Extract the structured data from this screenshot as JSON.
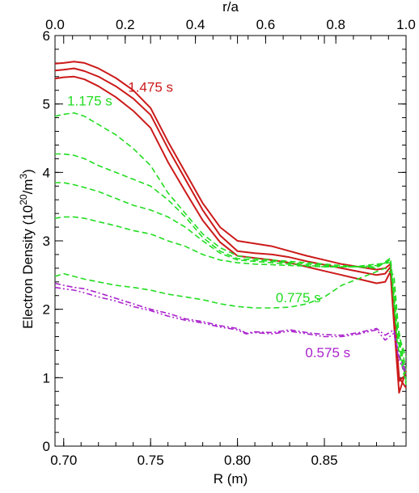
{
  "chart_data": {
    "type": "line",
    "xlabel": "R (m)",
    "x2label": "r/a",
    "ylabel_main": "Electron Density (10",
    "ylabel_sup1": "20",
    "ylabel_mid": "/m",
    "ylabel_sup2": "3",
    "ylabel_end": ")",
    "xlim": [
      0.695,
      0.897
    ],
    "ylim": [
      0,
      6
    ],
    "x2lim": [
      0,
      1
    ],
    "xticks": [
      0.7,
      0.75,
      0.8,
      0.85
    ],
    "xtick_labels": [
      "0.70",
      "0.75",
      "0.80",
      "0.85"
    ],
    "x2ticks": [
      0,
      0.2,
      0.4,
      0.6,
      0.8,
      1.0
    ],
    "x2tick_labels": [
      "0.0",
      "0.2",
      "0.4",
      "0.6",
      "0.8",
      "1.0"
    ],
    "yticks": [
      0,
      1,
      2,
      3,
      4,
      5,
      6
    ],
    "ytick_labels": [
      "0",
      "1",
      "2",
      "3",
      "4",
      "5",
      "6"
    ],
    "colors": {
      "red": "#cc1a1a",
      "green": "#22dd22",
      "purple": "#aa22cc"
    },
    "annotations": [
      {
        "text": "1.475 s",
        "color": "#cc1a1a",
        "x": 0.737,
        "y": 5.18
      },
      {
        "text": "1.175 s",
        "color": "#22dd22",
        "x": 0.702,
        "y": 4.98
      },
      {
        "text": "0.775 s",
        "color": "#22dd22",
        "x": 0.822,
        "y": 2.1
      },
      {
        "text": "0.575 s",
        "color": "#aa22cc",
        "x": 0.839,
        "y": 1.3
      }
    ],
    "series": [
      {
        "group": "1.475 s",
        "color": "#cc1a1a",
        "style": "solid",
        "x": [
          0.695,
          0.7,
          0.706,
          0.712,
          0.72,
          0.73,
          0.74,
          0.75,
          0.76,
          0.77,
          0.78,
          0.79,
          0.8,
          0.81,
          0.82,
          0.83,
          0.84,
          0.85,
          0.86,
          0.87,
          0.88,
          0.885,
          0.888,
          0.89,
          0.893,
          0.897
        ],
        "y": [
          5.59,
          5.6,
          5.62,
          5.6,
          5.52,
          5.38,
          5.2,
          4.94,
          4.45,
          4.0,
          3.55,
          3.2,
          3.0,
          2.96,
          2.92,
          2.85,
          2.78,
          2.72,
          2.66,
          2.62,
          2.58,
          2.6,
          2.66,
          2.0,
          1.0,
          0.85
        ]
      },
      {
        "group": "1.475 s",
        "color": "#cc1a1a",
        "style": "solid",
        "x": [
          0.695,
          0.7,
          0.706,
          0.712,
          0.72,
          0.73,
          0.74,
          0.75,
          0.76,
          0.77,
          0.78,
          0.79,
          0.8,
          0.81,
          0.82,
          0.83,
          0.84,
          0.85,
          0.86,
          0.87,
          0.88,
          0.885,
          0.888,
          0.89,
          0.893,
          0.897
        ],
        "y": [
          5.49,
          5.5,
          5.52,
          5.48,
          5.4,
          5.26,
          5.08,
          4.84,
          4.35,
          3.9,
          3.45,
          3.08,
          2.85,
          2.82,
          2.8,
          2.76,
          2.7,
          2.65,
          2.6,
          2.55,
          2.5,
          2.52,
          2.62,
          1.9,
          0.95,
          1.05
        ]
      },
      {
        "group": "1.475 s",
        "color": "#cc1a1a",
        "style": "solid",
        "x": [
          0.695,
          0.7,
          0.706,
          0.712,
          0.72,
          0.73,
          0.74,
          0.75,
          0.76,
          0.77,
          0.78,
          0.79,
          0.8,
          0.81,
          0.82,
          0.83,
          0.84,
          0.85,
          0.86,
          0.87,
          0.88,
          0.885,
          0.888,
          0.89,
          0.893,
          0.897
        ],
        "y": [
          5.37,
          5.39,
          5.4,
          5.36,
          5.26,
          5.1,
          4.9,
          4.65,
          4.15,
          3.72,
          3.3,
          2.98,
          2.78,
          2.75,
          2.72,
          2.68,
          2.62,
          2.56,
          2.5,
          2.44,
          2.38,
          2.4,
          2.55,
          1.8,
          0.78,
          1.1
        ]
      },
      {
        "group": "1.175 s",
        "color": "#22dd22",
        "style": "dashed",
        "x": [
          0.695,
          0.7,
          0.706,
          0.712,
          0.72,
          0.73,
          0.74,
          0.75,
          0.76,
          0.77,
          0.78,
          0.79,
          0.8,
          0.81,
          0.82,
          0.83,
          0.84,
          0.85,
          0.86,
          0.87,
          0.88,
          0.888,
          0.892,
          0.897
        ],
        "y": [
          4.82,
          4.85,
          4.87,
          4.82,
          4.7,
          4.55,
          4.35,
          4.1,
          3.7,
          3.4,
          3.1,
          2.9,
          2.78,
          2.74,
          2.72,
          2.7,
          2.68,
          2.66,
          2.64,
          2.62,
          2.6,
          2.75,
          1.8,
          1.1
        ]
      },
      {
        "group": "1.175 s",
        "color": "#22dd22",
        "style": "dashed",
        "x": [
          0.695,
          0.7,
          0.706,
          0.712,
          0.72,
          0.73,
          0.74,
          0.75,
          0.76,
          0.77,
          0.78,
          0.79,
          0.8,
          0.81,
          0.82,
          0.83,
          0.84,
          0.85,
          0.86,
          0.87,
          0.88,
          0.888,
          0.892,
          0.897
        ],
        "y": [
          4.27,
          4.27,
          4.25,
          4.2,
          4.1,
          4.0,
          3.9,
          3.8,
          3.6,
          3.35,
          3.05,
          2.85,
          2.74,
          2.72,
          2.7,
          2.68,
          2.66,
          2.64,
          2.62,
          2.62,
          2.62,
          2.72,
          1.7,
          1.0
        ]
      },
      {
        "group": "1.175 s",
        "color": "#22dd22",
        "style": "dashed",
        "x": [
          0.695,
          0.7,
          0.706,
          0.712,
          0.72,
          0.73,
          0.74,
          0.75,
          0.76,
          0.77,
          0.78,
          0.79,
          0.8,
          0.81,
          0.82,
          0.83,
          0.84,
          0.85,
          0.86,
          0.87,
          0.88,
          0.888,
          0.892,
          0.897
        ],
        "y": [
          3.85,
          3.85,
          3.82,
          3.78,
          3.72,
          3.62,
          3.52,
          3.45,
          3.35,
          3.2,
          3.0,
          2.82,
          2.72,
          2.7,
          2.68,
          2.66,
          2.64,
          2.62,
          2.62,
          2.62,
          2.64,
          2.7,
          1.6,
          0.95
        ]
      },
      {
        "group": "1.175 s",
        "color": "#22dd22",
        "style": "dashed",
        "x": [
          0.695,
          0.7,
          0.706,
          0.712,
          0.72,
          0.73,
          0.74,
          0.75,
          0.76,
          0.77,
          0.78,
          0.79,
          0.8,
          0.81,
          0.82,
          0.83,
          0.84,
          0.85,
          0.86,
          0.87,
          0.88,
          0.888,
          0.892,
          0.897
        ],
        "y": [
          3.33,
          3.35,
          3.35,
          3.33,
          3.28,
          3.22,
          3.15,
          3.1,
          3.0,
          2.92,
          2.8,
          2.72,
          2.68,
          2.66,
          2.65,
          2.64,
          2.63,
          2.62,
          2.62,
          2.63,
          2.66,
          2.68,
          1.5,
          0.9
        ]
      },
      {
        "group": "0.775 s",
        "color": "#22dd22",
        "style": "dashed",
        "x": [
          0.695,
          0.7,
          0.706,
          0.712,
          0.72,
          0.73,
          0.74,
          0.75,
          0.76,
          0.77,
          0.78,
          0.79,
          0.8,
          0.81,
          0.82,
          0.83,
          0.84,
          0.85,
          0.86,
          0.87,
          0.88,
          0.885,
          0.89,
          0.893,
          0.897
        ],
        "y": [
          2.48,
          2.52,
          2.48,
          2.44,
          2.4,
          2.35,
          2.32,
          2.28,
          2.22,
          2.18,
          2.14,
          2.08,
          2.04,
          2.02,
          2.02,
          2.03,
          2.08,
          2.18,
          2.35,
          2.45,
          2.55,
          2.6,
          2.5,
          1.6,
          1.3
        ]
      },
      {
        "group": "0.575 s",
        "color": "#aa22cc",
        "style": "dashdot",
        "x": [
          0.695,
          0.7,
          0.706,
          0.712,
          0.72,
          0.73,
          0.74,
          0.75,
          0.76,
          0.77,
          0.78,
          0.79,
          0.8,
          0.805,
          0.81,
          0.82,
          0.83,
          0.84,
          0.85,
          0.86,
          0.87,
          0.88,
          0.885,
          0.89,
          0.893,
          0.897
        ],
        "y": [
          2.38,
          2.35,
          2.32,
          2.3,
          2.24,
          2.16,
          2.08,
          2.0,
          1.94,
          1.86,
          1.82,
          1.76,
          1.72,
          1.65,
          1.67,
          1.66,
          1.7,
          1.66,
          1.63,
          1.62,
          1.66,
          1.72,
          1.62,
          1.7,
          1.3,
          1.1
        ]
      },
      {
        "group": "0.575 s",
        "color": "#aa22cc",
        "style": "dashdotdot",
        "x": [
          0.695,
          0.7,
          0.706,
          0.712,
          0.72,
          0.73,
          0.74,
          0.75,
          0.76,
          0.77,
          0.78,
          0.79,
          0.8,
          0.805,
          0.81,
          0.82,
          0.83,
          0.84,
          0.85,
          0.86,
          0.87,
          0.88,
          0.885,
          0.89,
          0.893,
          0.897
        ],
        "y": [
          2.32,
          2.3,
          2.28,
          2.24,
          2.18,
          2.12,
          2.04,
          1.98,
          1.9,
          1.84,
          1.8,
          1.74,
          1.7,
          1.64,
          1.66,
          1.64,
          1.68,
          1.64,
          1.6,
          1.6,
          1.64,
          1.7,
          1.55,
          1.65,
          1.25,
          1.05
        ]
      }
    ]
  }
}
